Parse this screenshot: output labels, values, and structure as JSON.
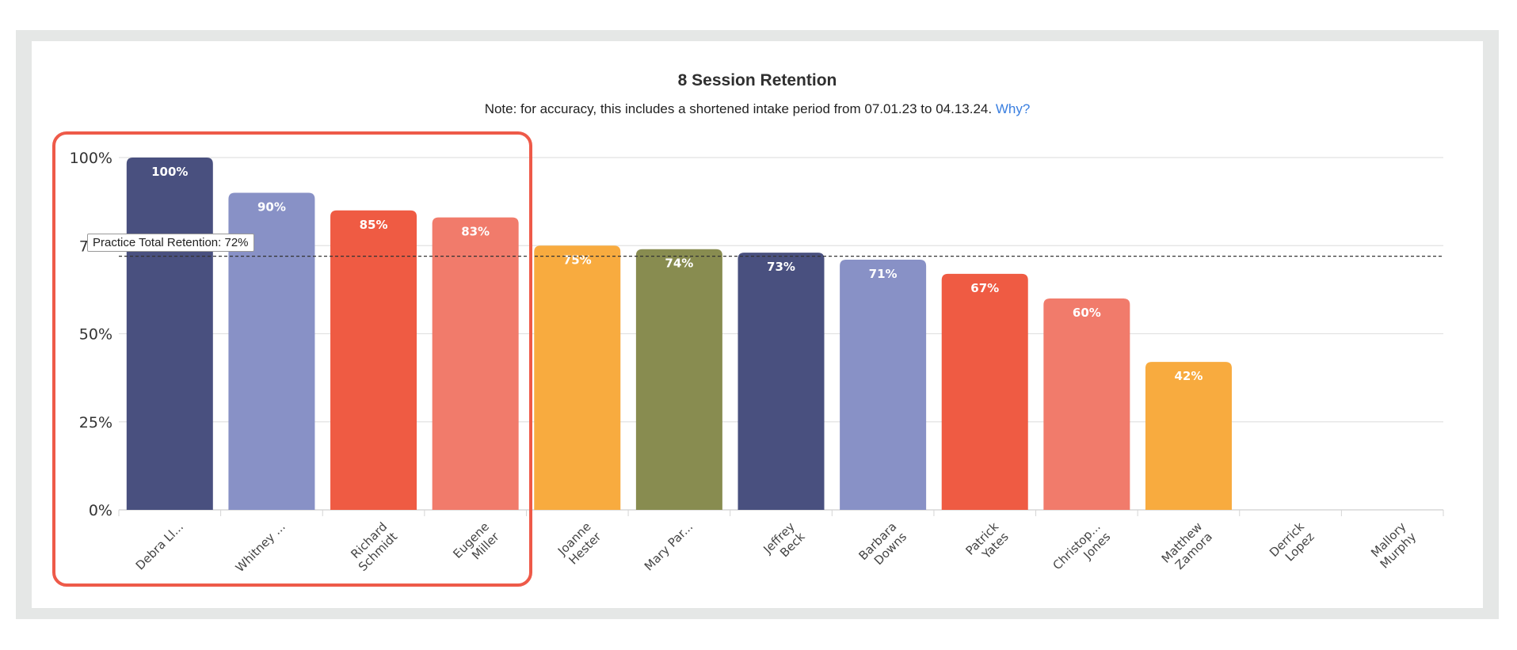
{
  "title": "8 Session Retention",
  "note": {
    "text": "Note: for accuracy, this includes a shortened intake period from 07.01.23 to 04.13.24.",
    "link": "Why?"
  },
  "reference_line": {
    "label": "Practice Total Retention: 72%",
    "value": 72
  },
  "colors": {
    "navy": "#49507f",
    "lavender": "#8891c6",
    "red": "#ef5b43",
    "salmon": "#f17b6b",
    "orange": "#f8ab3f",
    "olive": "#888c50",
    "highlight": "#ee5a49",
    "link": "#3a7fe0"
  },
  "chart_data": {
    "type": "bar",
    "title": "8 Session Retention",
    "ylim": [
      0,
      100
    ],
    "yticks": [
      "0%",
      "25%",
      "50%",
      "75%",
      "100%"
    ],
    "ytick_values": [
      0,
      25,
      50,
      75,
      100
    ],
    "grid": true,
    "categories": [
      [
        "Debra Ll..."
      ],
      [
        "Whitney ..."
      ],
      [
        "Richard",
        "Schmidt"
      ],
      [
        "Eugene",
        "Miller"
      ],
      [
        "Joanne",
        "Hester"
      ],
      [
        "Mary Par..."
      ],
      [
        "Jeffrey",
        "Beck"
      ],
      [
        "Barbara",
        "Downs"
      ],
      [
        "Patrick",
        "Yates"
      ],
      [
        "Christop...",
        "Jones"
      ],
      [
        "Matthew",
        "Zamora"
      ],
      [
        "Derrick",
        "Lopez"
      ],
      [
        "Mallory",
        "Murphy"
      ]
    ],
    "values": [
      100,
      90,
      85,
      83,
      75,
      74,
      73,
      71,
      67,
      60,
      42,
      null,
      null
    ],
    "value_labels": [
      "100%",
      "90%",
      "85%",
      "83%",
      "75%",
      "74%",
      "73%",
      "71%",
      "67%",
      "60%",
      "42%",
      "",
      ""
    ],
    "bar_colors": [
      "navy",
      "lavender",
      "red",
      "salmon",
      "orange",
      "olive",
      "navy",
      "lavender",
      "red",
      "salmon",
      "orange",
      "navy",
      "lavender"
    ]
  }
}
